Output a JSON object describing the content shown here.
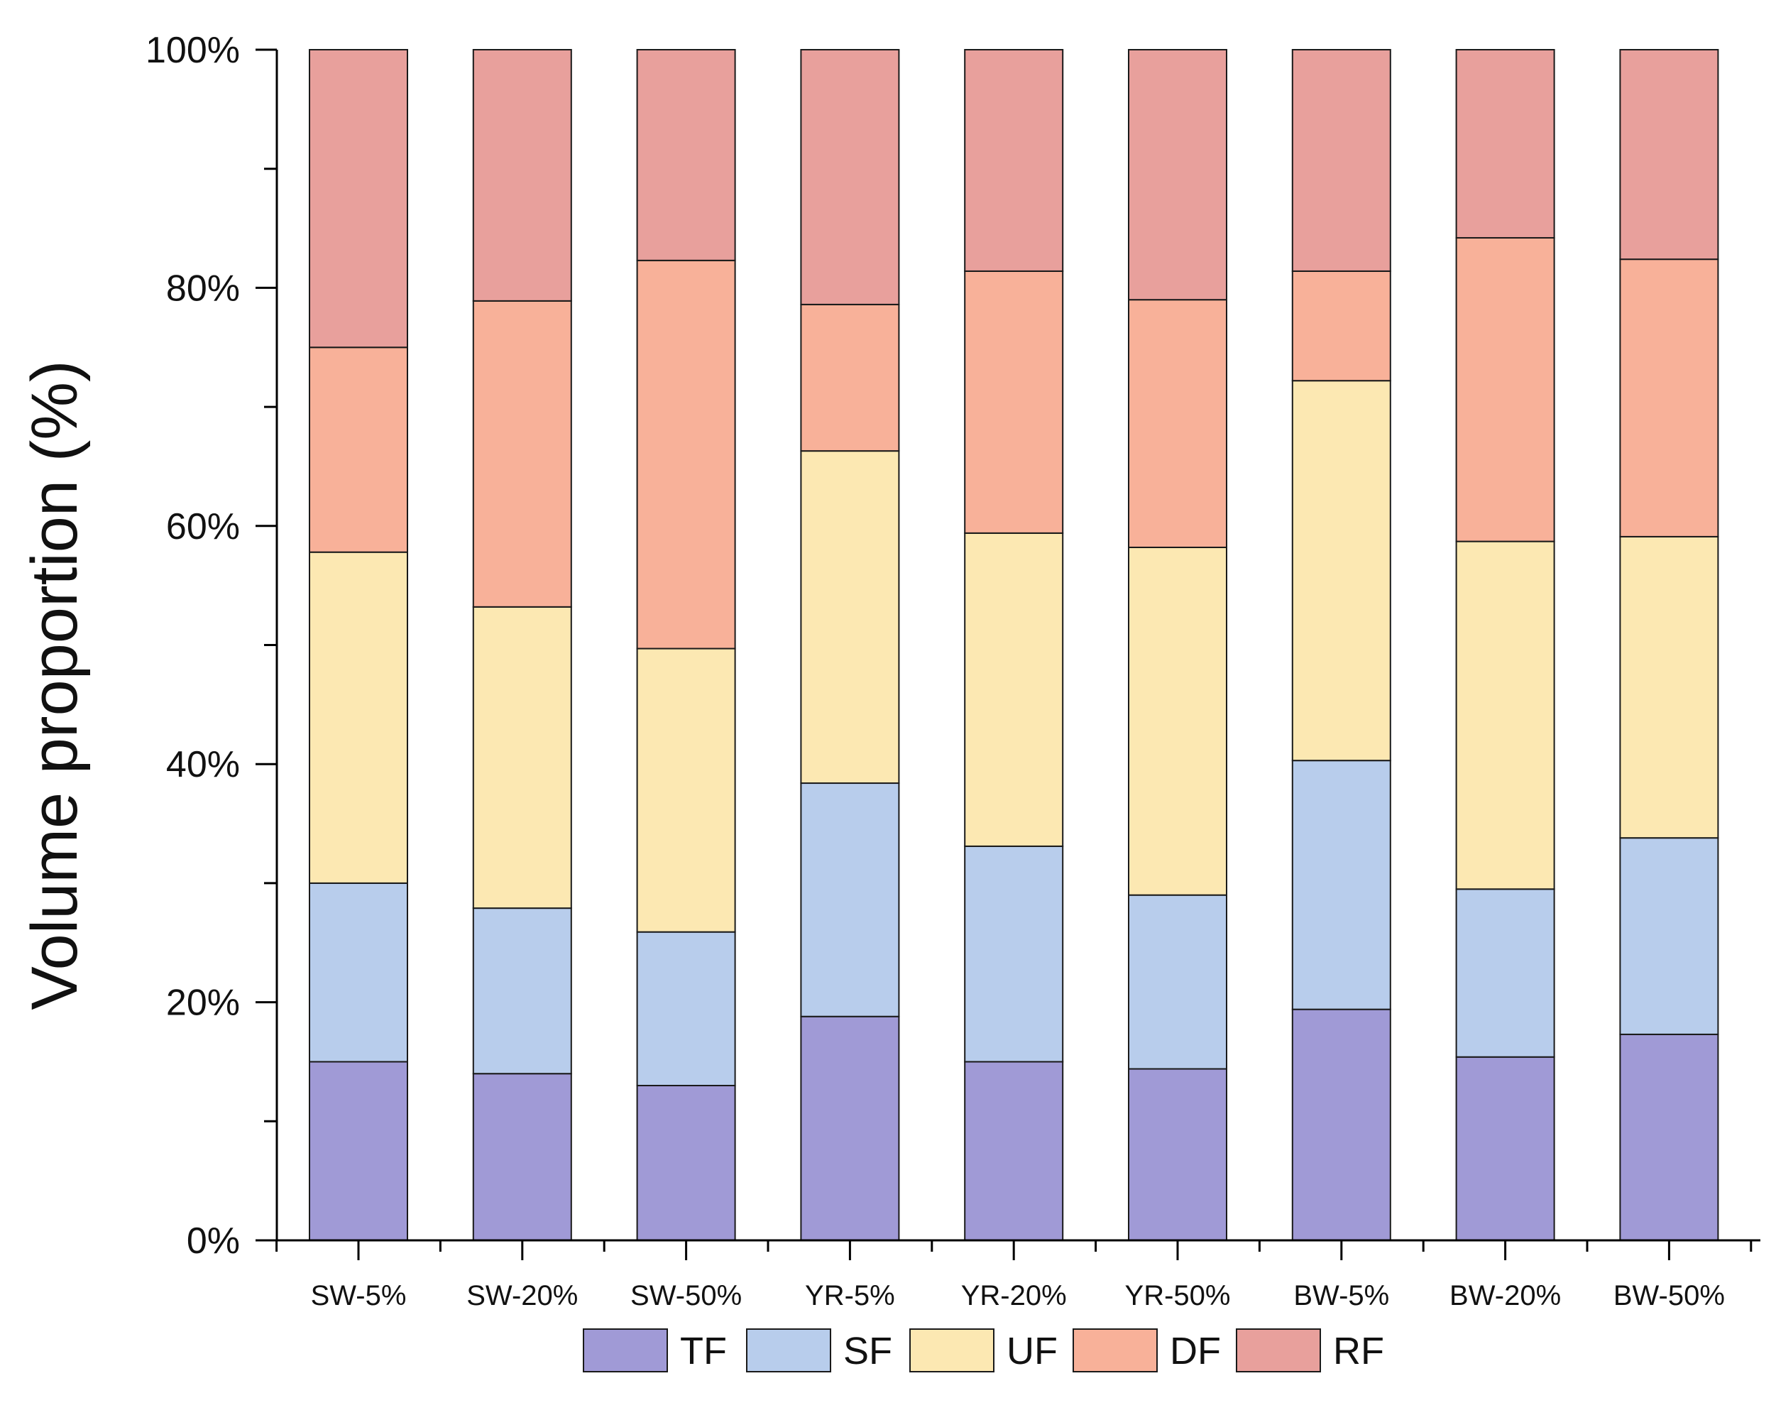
{
  "chart_data": {
    "type": "bar",
    "stacked": true,
    "title": "",
    "xlabel": "",
    "ylabel": "Volume proportion (%)",
    "ylim": [
      0,
      100
    ],
    "y_ticks": [
      0,
      20,
      40,
      60,
      80,
      100
    ],
    "y_tick_labels": [
      "0%",
      "20%",
      "40%",
      "60%",
      "80%",
      "100%"
    ],
    "y_minor_ticks": [
      10,
      30,
      50,
      70,
      90
    ],
    "grid": false,
    "legend_position": "bottom",
    "categories": [
      "SW-5%",
      "SW-20%",
      "SW-50%",
      "YR-5%",
      "YR-20%",
      "YR-50%",
      "BW-5%",
      "BW-20%",
      "BW-50%"
    ],
    "series": [
      {
        "name": "TF",
        "color": "#a09ad6",
        "values": [
          15.0,
          14.0,
          13.0,
          18.8,
          15.0,
          14.4,
          19.4,
          15.4,
          17.3
        ]
      },
      {
        "name": "SF",
        "color": "#b8cdec",
        "values": [
          15.0,
          13.9,
          12.9,
          19.6,
          18.1,
          14.6,
          20.9,
          14.1,
          16.5
        ]
      },
      {
        "name": "UF",
        "color": "#fce8b2",
        "values": [
          27.8,
          25.3,
          23.8,
          27.9,
          26.3,
          29.2,
          31.9,
          29.2,
          25.3
        ]
      },
      {
        "name": "DF",
        "color": "#f8b199",
        "values": [
          17.2,
          25.7,
          32.6,
          12.3,
          22.0,
          20.8,
          9.2,
          25.5,
          23.3
        ]
      },
      {
        "name": "RF",
        "color": "#e8a09c",
        "values": [
          25.0,
          21.1,
          17.7,
          21.4,
          18.6,
          21.0,
          18.6,
          15.8,
          17.6
        ]
      }
    ]
  }
}
